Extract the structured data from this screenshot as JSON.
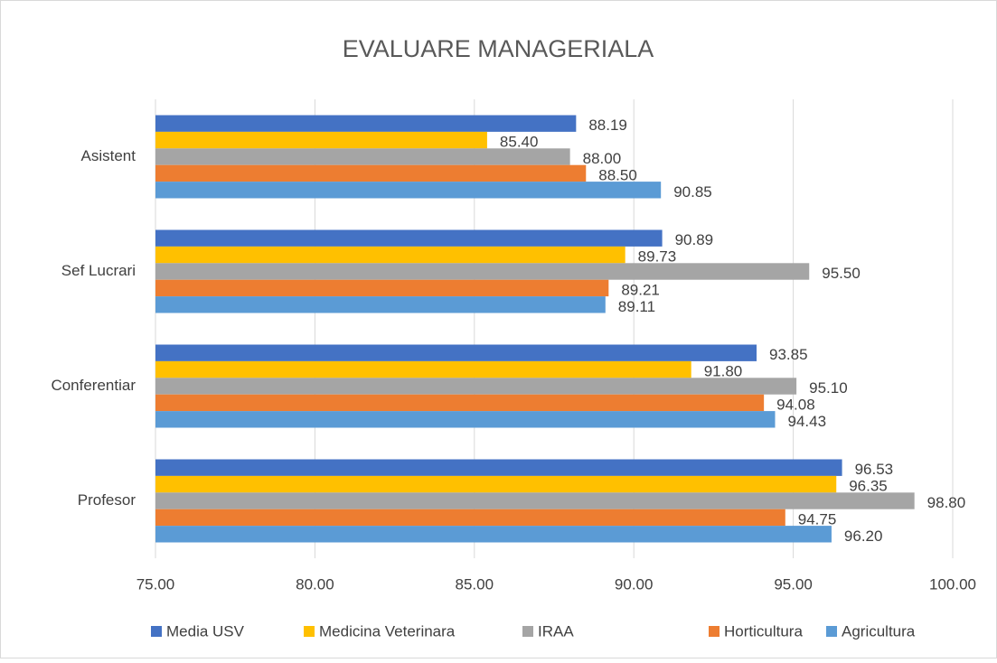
{
  "chart_data": {
    "type": "bar",
    "orientation": "horizontal",
    "title": "EVALUARE MANAGERIALA",
    "categories": [
      "Asistent",
      "Sef Lucrari",
      "Conferentiar",
      "Profesor"
    ],
    "series": [
      {
        "name": "Media USV",
        "color": "#4472c4",
        "values": [
          88.19,
          90.89,
          93.85,
          96.53
        ],
        "value_labels": [
          "88.19",
          "90.89",
          "93.85",
          "96.53"
        ]
      },
      {
        "name": "Medicina Veterinara",
        "color": "#ffc000",
        "values": [
          85.4,
          89.73,
          91.8,
          96.35
        ],
        "value_labels": [
          "85.40",
          "89.73",
          "91.80",
          "96.35"
        ]
      },
      {
        "name": "IRAA",
        "color": "#a5a5a5",
        "values": [
          88,
          95.5,
          95.1,
          98.8
        ],
        "value_labels": [
          "88.00",
          "95.50",
          "95.10",
          "98.80"
        ]
      },
      {
        "name": "Horticultura",
        "color": "#ed7d31",
        "values": [
          88.5,
          89.21,
          94.08,
          94.75
        ],
        "value_labels": [
          "88.50",
          "89.21",
          "94.08",
          "94.75"
        ]
      },
      {
        "name": "Agricultura",
        "color": "#5b9bd5",
        "values": [
          90.85,
          89.11,
          94.43,
          96.2
        ],
        "value_labels": [
          "90.85",
          "89.11",
          "94.43",
          "96.20"
        ]
      }
    ],
    "xlim": [
      75,
      100
    ],
    "xticks": [
      {
        "value": 75,
        "label": "75.00"
      },
      {
        "value": 80,
        "label": "80.00"
      },
      {
        "value": 85,
        "label": "85.00"
      },
      {
        "value": 90,
        "label": "90.00"
      },
      {
        "value": 95,
        "label": "95.00"
      },
      {
        "value": 100,
        "label": "100.00"
      }
    ],
    "grid": true,
    "legend": "bottom"
  }
}
